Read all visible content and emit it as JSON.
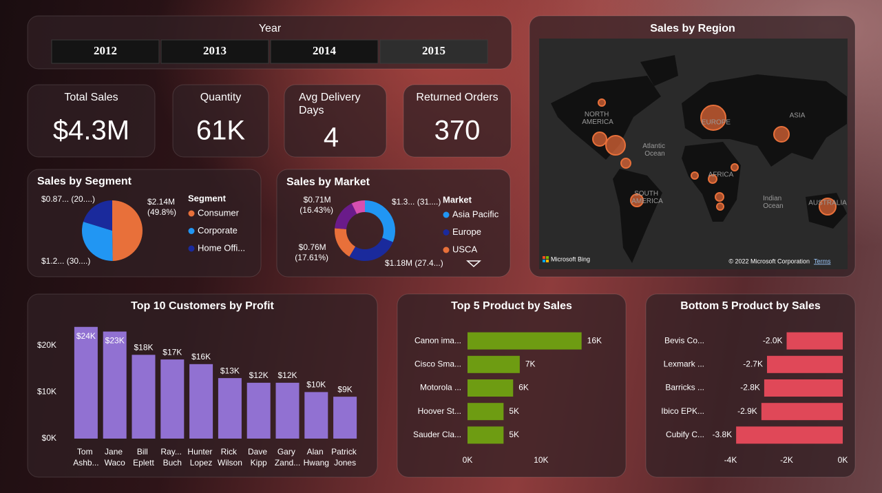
{
  "slicer": {
    "title": "Year",
    "options": [
      "2012",
      "2013",
      "2014",
      "2015"
    ]
  },
  "kpis": [
    {
      "label": "Total Sales",
      "value": "$4.3M"
    },
    {
      "label": "Quantity",
      "value": "61K"
    },
    {
      "label": "Avg Delivery Days",
      "value": "4"
    },
    {
      "label": "Returned Orders",
      "value": "370"
    }
  ],
  "map": {
    "title": "Sales by Region",
    "labels": [
      "NORTH AMERICA",
      "Atlantic Ocean",
      "EUROPE",
      "ASIA",
      "AFRICA",
      "SOUTH AMERICA",
      "Indian Ocean",
      "AUSTRALIA"
    ],
    "attribution": "Microsoft Bing",
    "copyright": "© 2022 Microsoft Corporation",
    "terms": "Terms"
  },
  "chart_data": [
    {
      "type": "pie",
      "title": "Sales by Segment",
      "legend_title": "Segment",
      "categories": [
        "Consumer",
        "Corporate",
        "Home Offi..."
      ],
      "values": [
        2.14,
        1.29,
        0.87
      ],
      "value_labels": [
        "$2.14M (49.8%)",
        "$1.2... (30....)",
        "$0.87... (20....)"
      ],
      "colors": [
        "#e8703a",
        "#2196f3",
        "#1a2a9c"
      ]
    },
    {
      "type": "donut",
      "title": "Sales by Market",
      "legend_title": "Market",
      "categories": [
        "Asia Pacific",
        "Europe",
        "USCA",
        null,
        null
      ],
      "values": [
        1.34,
        1.18,
        0.76,
        0.71,
        0.31
      ],
      "value_labels": [
        "$1.3... (31....)",
        "$1.18M (27.4...)",
        "$0.76M (17.61%)",
        "$0.71M (16.43%)",
        null
      ],
      "colors": [
        "#2196f3",
        "#1a2a9c",
        "#e8703a",
        "#6a1b8a",
        "#d64fb0"
      ]
    },
    {
      "type": "bar",
      "title": "Top 10 Customers by Profit",
      "categories": [
        "Tom Ashb...",
        "Jane Waco",
        "Bill Eplett",
        "Ray... Buch",
        "Hunter Lopez",
        "Rick Wilson",
        "Dave Kipp",
        "Gary Zand...",
        "Alan Hwang",
        "Patrick Jones"
      ],
      "values": [
        24,
        23,
        18,
        17,
        16,
        13,
        12,
        12,
        10,
        9
      ],
      "value_labels": [
        "$24K",
        "$23K",
        "$18K",
        "$17K",
        "$16K",
        "$13K",
        "$12K",
        "$12K",
        "$10K",
        "$9K"
      ],
      "color": "#9171d2",
      "ylim": [
        0,
        25
      ],
      "yticks": [
        {
          "value": 0,
          "label": "$0K"
        },
        {
          "value": 10,
          "label": "$10K"
        },
        {
          "value": 20,
          "label": "$20K"
        }
      ]
    },
    {
      "type": "hbar",
      "title": "Top 5 Product by Sales",
      "categories": [
        "Canon ima...",
        "Cisco Sma...",
        "Motorola ...",
        "Hoover St...",
        "Sauder Cla..."
      ],
      "values": [
        15.5,
        7.1,
        6.2,
        4.9,
        4.9
      ],
      "value_labels": [
        "16K",
        "7K",
        "6K",
        "5K",
        "5K"
      ],
      "color": "#6e9c12",
      "xlim": [
        0,
        16
      ],
      "xticks": [
        {
          "value": 0,
          "label": "0K"
        },
        {
          "value": 10,
          "label": "10K"
        }
      ]
    },
    {
      "type": "hbar",
      "title": "Bottom 5 Product by Sales",
      "categories": [
        "Bevis Co...",
        "Lexmark ...",
        "Barricks ...",
        "Ibico EPK...",
        "Cubify C..."
      ],
      "values": [
        -2.0,
        -2.7,
        -2.8,
        -2.9,
        -3.8
      ],
      "value_labels": [
        "-2.0K",
        "-2.7K",
        "-2.8K",
        "-2.9K",
        "-3.8K"
      ],
      "color": "#e04858",
      "xlim": [
        -4,
        0
      ],
      "xticks": [
        {
          "value": -4,
          "label": "-4K"
        },
        {
          "value": -2,
          "label": "-2K"
        },
        {
          "value": 0,
          "label": "0K"
        }
      ]
    }
  ]
}
